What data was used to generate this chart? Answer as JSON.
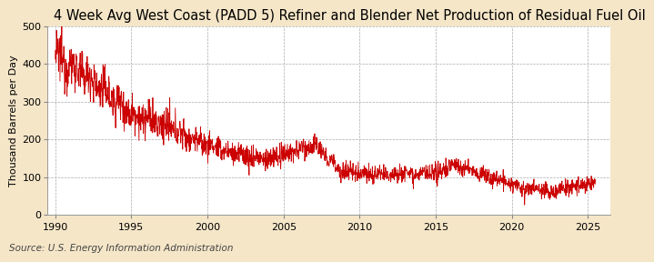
{
  "title": "4 Week Avg West Coast (PADD 5) Refiner and Blender Net Production of Residual Fuel Oil",
  "ylabel": "Thousand Barrels per Day",
  "source": "Source: U.S. Energy Information Administration",
  "line_color": "#cc0000",
  "figure_background": "#f5e6c8",
  "plot_background": "#ffffff",
  "ylim": [
    0,
    500
  ],
  "yticks": [
    0,
    100,
    200,
    300,
    400,
    500
  ],
  "xlim": [
    1989.5,
    2026.5
  ],
  "xticks": [
    1990,
    1995,
    2000,
    2005,
    2010,
    2015,
    2020,
    2025
  ],
  "title_fontsize": 10.5,
  "ylabel_fontsize": 8,
  "source_fontsize": 7.5,
  "tick_fontsize": 8,
  "linewidth": 0.6,
  "grid_color": "#aaaaaa",
  "grid_linestyle": "--",
  "grid_linewidth": 0.5
}
